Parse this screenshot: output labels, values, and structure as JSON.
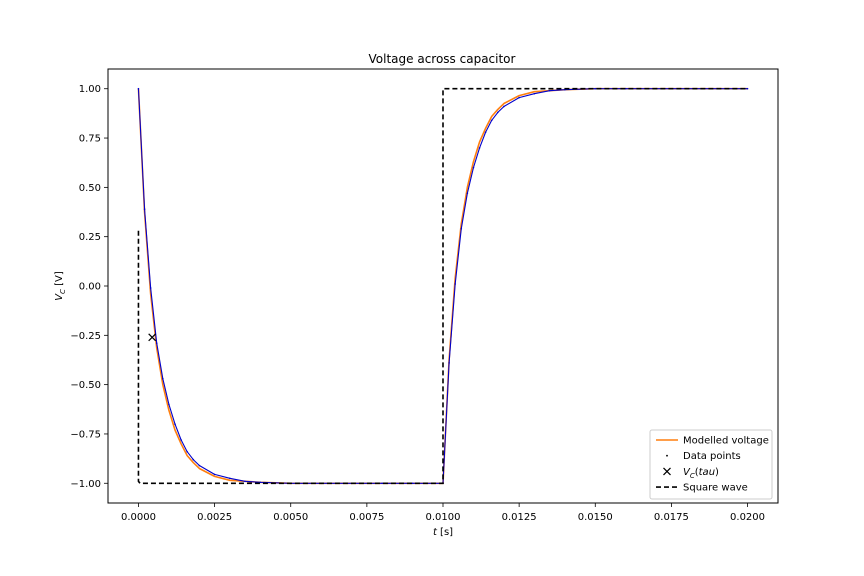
{
  "chart_data": {
    "type": "line",
    "title": "Voltage across capacitor",
    "xlabel": "t [s]",
    "ylabel": "V_C [V]",
    "xlim": [
      -0.001,
      0.021
    ],
    "ylim": [
      -1.1,
      1.1
    ],
    "xticks": [
      0.0,
      0.0025,
      0.005,
      0.0075,
      0.01,
      0.0125,
      0.015,
      0.0175,
      0.02
    ],
    "xtick_labels": [
      "0.0000",
      "0.0025",
      "0.0050",
      "0.0075",
      "0.0100",
      "0.0125",
      "0.0150",
      "0.0175",
      "0.0200"
    ],
    "yticks": [
      -1.0,
      -0.75,
      -0.5,
      -0.25,
      0.0,
      0.25,
      0.5,
      0.75,
      1.0
    ],
    "ytick_labels": [
      "−1.00",
      "−0.75",
      "−0.50",
      "−0.25",
      "0.00",
      "0.25",
      "0.50",
      "0.75",
      "1.00"
    ],
    "grid": false,
    "legend_position": "lower-right",
    "series": [
      {
        "name": "Modelled voltage",
        "kind": "line",
        "color": "#ff7f0e",
        "x": [
          0.0,
          0.0002,
          0.0004,
          0.0006,
          0.0008,
          0.001,
          0.0012,
          0.0014,
          0.0016,
          0.0018,
          0.002,
          0.0025,
          0.003,
          0.004,
          0.005,
          0.006,
          0.007,
          0.008,
          0.009,
          0.01,
          0.0102,
          0.0104,
          0.0106,
          0.0108,
          0.011,
          0.0112,
          0.0114,
          0.0116,
          0.0118,
          0.012,
          0.0125,
          0.013,
          0.014,
          0.015,
          0.016,
          0.017,
          0.018,
          0.019,
          0.02
        ],
        "y": [
          1.0,
          0.375,
          -0.04,
          -0.315,
          -0.5,
          -0.63,
          -0.73,
          -0.8,
          -0.86,
          -0.895,
          -0.925,
          -0.965,
          -0.985,
          -0.995,
          -1.0,
          -1.0,
          -1.0,
          -1.0,
          -1.0,
          -1.0,
          -0.375,
          0.04,
          0.315,
          0.5,
          0.63,
          0.73,
          0.8,
          0.86,
          0.895,
          0.925,
          0.965,
          0.985,
          0.995,
          1.0,
          1.0,
          1.0,
          1.0,
          1.0,
          1.0
        ]
      },
      {
        "name": "Data points",
        "kind": "points",
        "color": "#0000cc",
        "x": [
          0.0,
          0.0002,
          0.0004,
          0.0006,
          0.0008,
          0.001,
          0.0012,
          0.0014,
          0.0016,
          0.0018,
          0.002,
          0.0025,
          0.003,
          0.0035,
          0.004,
          0.005,
          0.006,
          0.007,
          0.008,
          0.009,
          0.01,
          0.0102,
          0.0104,
          0.0106,
          0.0108,
          0.011,
          0.0112,
          0.0114,
          0.0116,
          0.0118,
          0.012,
          0.0125,
          0.013,
          0.0135,
          0.014,
          0.015,
          0.016,
          0.017,
          0.018,
          0.019,
          0.02
        ],
        "y": [
          1.0,
          0.39,
          -0.01,
          -0.29,
          -0.47,
          -0.6,
          -0.7,
          -0.78,
          -0.84,
          -0.88,
          -0.91,
          -0.955,
          -0.975,
          -0.99,
          -0.995,
          -1.0,
          -1.0,
          -1.0,
          -1.0,
          -1.0,
          -1.0,
          -0.39,
          0.01,
          0.29,
          0.47,
          0.6,
          0.7,
          0.78,
          0.84,
          0.88,
          0.91,
          0.955,
          0.975,
          0.99,
          0.995,
          1.0,
          1.0,
          1.0,
          1.0,
          1.0,
          1.0
        ]
      },
      {
        "name": "V_C(tau)",
        "kind": "marker",
        "color": "#000000",
        "x": [
          0.00045
        ],
        "y": [
          -0.26
        ]
      },
      {
        "name": "Square wave",
        "kind": "dashed",
        "color": "#000000",
        "x": [
          0.0,
          0.0,
          5e-05,
          0.01,
          0.01,
          0.02
        ],
        "y": [
          0.28,
          -0.99,
          -1.0,
          -1.0,
          1.0,
          1.0
        ]
      }
    ]
  }
}
